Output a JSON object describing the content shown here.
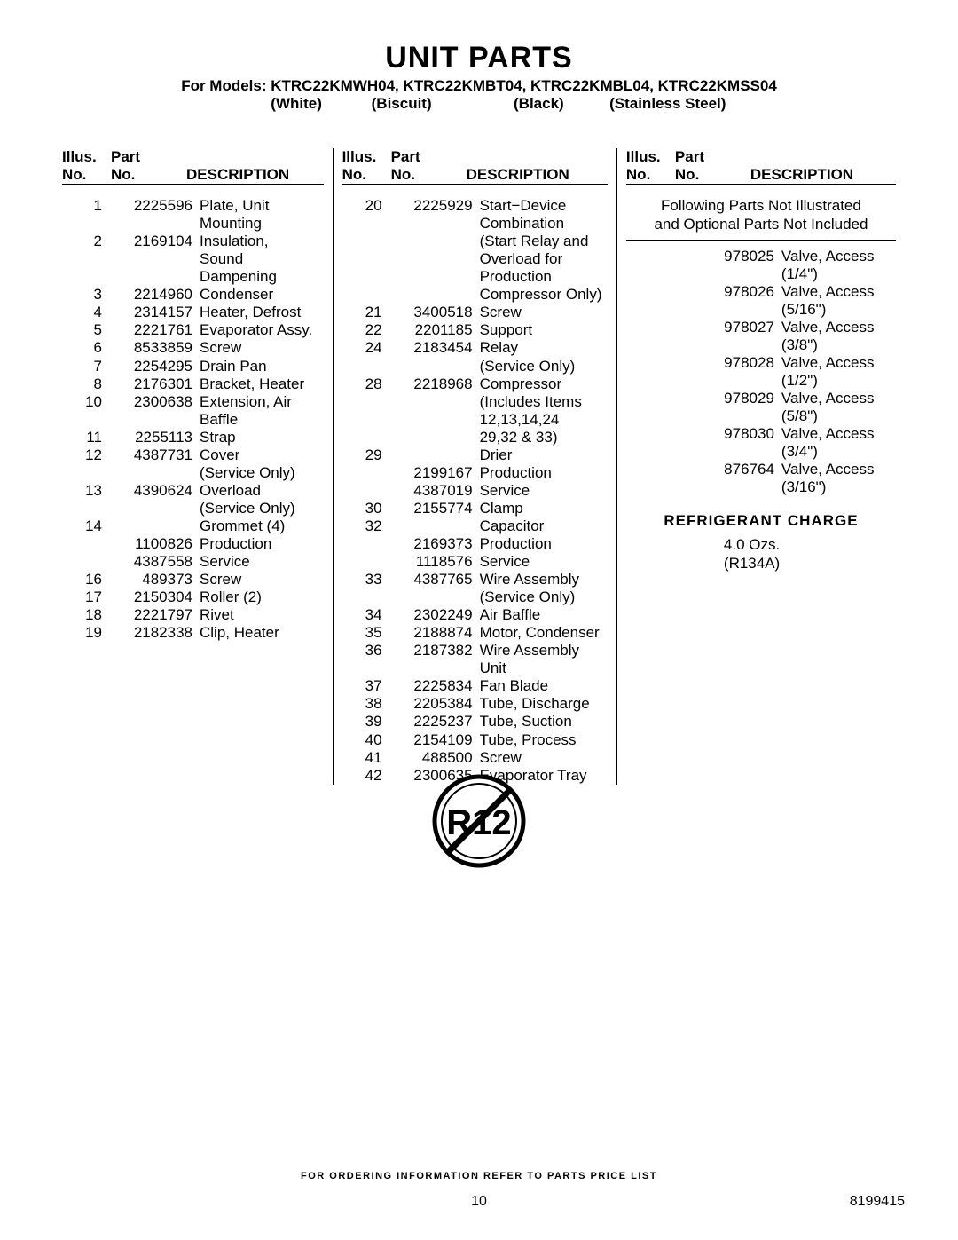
{
  "title": "UNIT PARTS",
  "models_line": "For Models: KTRC22KMWH04, KTRC22KMBT04, KTRC22KMBL04, KTRC22KMSS04",
  "colors": {
    "white": "(White)",
    "biscuit": "(Biscuit)",
    "black": "(Black)",
    "ss": "(Stainless Steel)"
  },
  "headers": {
    "illus1": "Illus.",
    "illus2": "No.",
    "part1": "Part",
    "part2": "No.",
    "desc": "DESCRIPTION"
  },
  "col1": [
    {
      "i": "1",
      "p": "2225596",
      "d": "Plate, Unit"
    },
    {
      "i": "",
      "p": "",
      "d": "Mounting"
    },
    {
      "i": "2",
      "p": "2169104",
      "d": "Insulation,"
    },
    {
      "i": "",
      "p": "",
      "d": "Sound Dampening"
    },
    {
      "i": "3",
      "p": "2214960",
      "d": "Condenser"
    },
    {
      "i": "4",
      "p": "2314157",
      "d": "Heater, Defrost"
    },
    {
      "i": "5",
      "p": "2221761",
      "d": "Evaporator Assy."
    },
    {
      "i": "6",
      "p": "8533859",
      "d": "Screw"
    },
    {
      "i": "7",
      "p": "2254295",
      "d": "Drain Pan"
    },
    {
      "i": "8",
      "p": "2176301",
      "d": "Bracket, Heater"
    },
    {
      "i": "10",
      "p": "2300638",
      "d": "Extension, Air"
    },
    {
      "i": "",
      "p": "",
      "d": "Baffle"
    },
    {
      "i": "11",
      "p": "2255113",
      "d": "Strap"
    },
    {
      "i": "12",
      "p": "4387731",
      "d": "Cover"
    },
    {
      "i": "",
      "p": "",
      "d": "(Service Only)"
    },
    {
      "i": "13",
      "p": "4390624",
      "d": "Overload"
    },
    {
      "i": "",
      "p": "",
      "d": "(Service Only)"
    },
    {
      "i": "14",
      "p": "",
      "d": "Grommet (4)"
    },
    {
      "i": "",
      "p": "1100826",
      "d": "Production"
    },
    {
      "i": "",
      "p": "4387558",
      "d": "Service"
    },
    {
      "i": "16",
      "p": "489373",
      "d": "Screw"
    },
    {
      "i": "17",
      "p": "2150304",
      "d": "Roller (2)"
    },
    {
      "i": "18",
      "p": "2221797",
      "d": "Rivet"
    },
    {
      "i": "19",
      "p": "2182338",
      "d": "Clip, Heater"
    }
  ],
  "col2": [
    {
      "i": "20",
      "p": "2225929",
      "d": "Start−Device"
    },
    {
      "i": "",
      "p": "",
      "d": "Combination"
    },
    {
      "i": "",
      "p": "",
      "d": "(Start Relay and"
    },
    {
      "i": "",
      "p": "",
      "d": "Overload for"
    },
    {
      "i": "",
      "p": "",
      "d": "Production"
    },
    {
      "i": "",
      "p": "",
      "d": "Compressor Only)"
    },
    {
      "i": "21",
      "p": "3400518",
      "d": "Screw"
    },
    {
      "i": "22",
      "p": "2201185",
      "d": "Support"
    },
    {
      "i": "24",
      "p": "2183454",
      "d": "Relay"
    },
    {
      "i": "",
      "p": "",
      "d": "(Service Only)"
    },
    {
      "i": "28",
      "p": "2218968",
      "d": "Compressor"
    },
    {
      "i": "",
      "p": "",
      "d": "(Includes Items"
    },
    {
      "i": "",
      "p": "",
      "d": "12,13,14,24"
    },
    {
      "i": "",
      "p": "",
      "d": "29,32 & 33)"
    },
    {
      "i": "29",
      "p": "",
      "d": "Drier"
    },
    {
      "i": "",
      "p": "2199167",
      "d": "Production"
    },
    {
      "i": "",
      "p": "4387019",
      "d": "Service"
    },
    {
      "i": "30",
      "p": "2155774",
      "d": "Clamp"
    },
    {
      "i": "32",
      "p": "",
      "d": "Capacitor"
    },
    {
      "i": "",
      "p": "2169373",
      "d": "Production"
    },
    {
      "i": "",
      "p": "1118576",
      "d": "Service"
    },
    {
      "i": "33",
      "p": "4387765",
      "d": "Wire Assembly"
    },
    {
      "i": "",
      "p": "",
      "d": "(Service Only)"
    },
    {
      "i": "34",
      "p": "2302249",
      "d": "Air Baffle"
    },
    {
      "i": "35",
      "p": "2188874",
      "d": "Motor, Condenser"
    },
    {
      "i": "36",
      "p": "2187382",
      "d": "Wire Assembly"
    },
    {
      "i": "",
      "p": "",
      "d": "Unit"
    },
    {
      "i": "37",
      "p": "2225834",
      "d": "Fan Blade"
    },
    {
      "i": "38",
      "p": "2205384",
      "d": "Tube, Discharge"
    },
    {
      "i": "39",
      "p": "2225237",
      "d": "Tube, Suction"
    },
    {
      "i": "40",
      "p": "2154109",
      "d": "Tube, Process"
    },
    {
      "i": "41",
      "p": "488500",
      "d": "Screw"
    },
    {
      "i": "42",
      "p": "2300635",
      "d": "Evaporator Tray"
    }
  ],
  "col3_note1": "Following Parts Not Illustrated",
  "col3_note2": "and Optional Parts Not Included",
  "col3": [
    {
      "i": "",
      "p": "978025",
      "d": "Valve, Access"
    },
    {
      "i": "",
      "p": "",
      "d": "(1/4\")"
    },
    {
      "i": "",
      "p": "978026",
      "d": "Valve, Access"
    },
    {
      "i": "",
      "p": "",
      "d": "(5/16\")"
    },
    {
      "i": "",
      "p": "978027",
      "d": "Valve, Access"
    },
    {
      "i": "",
      "p": "",
      "d": "(3/8\")"
    },
    {
      "i": "",
      "p": "978028",
      "d": "Valve, Access"
    },
    {
      "i": "",
      "p": "",
      "d": "(1/2\")"
    },
    {
      "i": "",
      "p": "978029",
      "d": "Valve, Access"
    },
    {
      "i": "",
      "p": "",
      "d": "(5/8\")"
    },
    {
      "i": "",
      "p": "978030",
      "d": "Valve, Access"
    },
    {
      "i": "",
      "p": "",
      "d": "(3/4\")"
    },
    {
      "i": "",
      "p": "876764",
      "d": "Valve, Access"
    },
    {
      "i": "",
      "p": "",
      "d": "(3/16\")"
    }
  ],
  "refrigerant_head": "REFRIGERANT CHARGE",
  "refrigerant": {
    "amount": "4.0 Ozs.",
    "type": "(R134A)"
  },
  "r12_text": "R12",
  "footer": {
    "order": "FOR ORDERING INFORMATION REFER TO PARTS PRICE LIST",
    "page": "10",
    "doc": "8199415"
  }
}
